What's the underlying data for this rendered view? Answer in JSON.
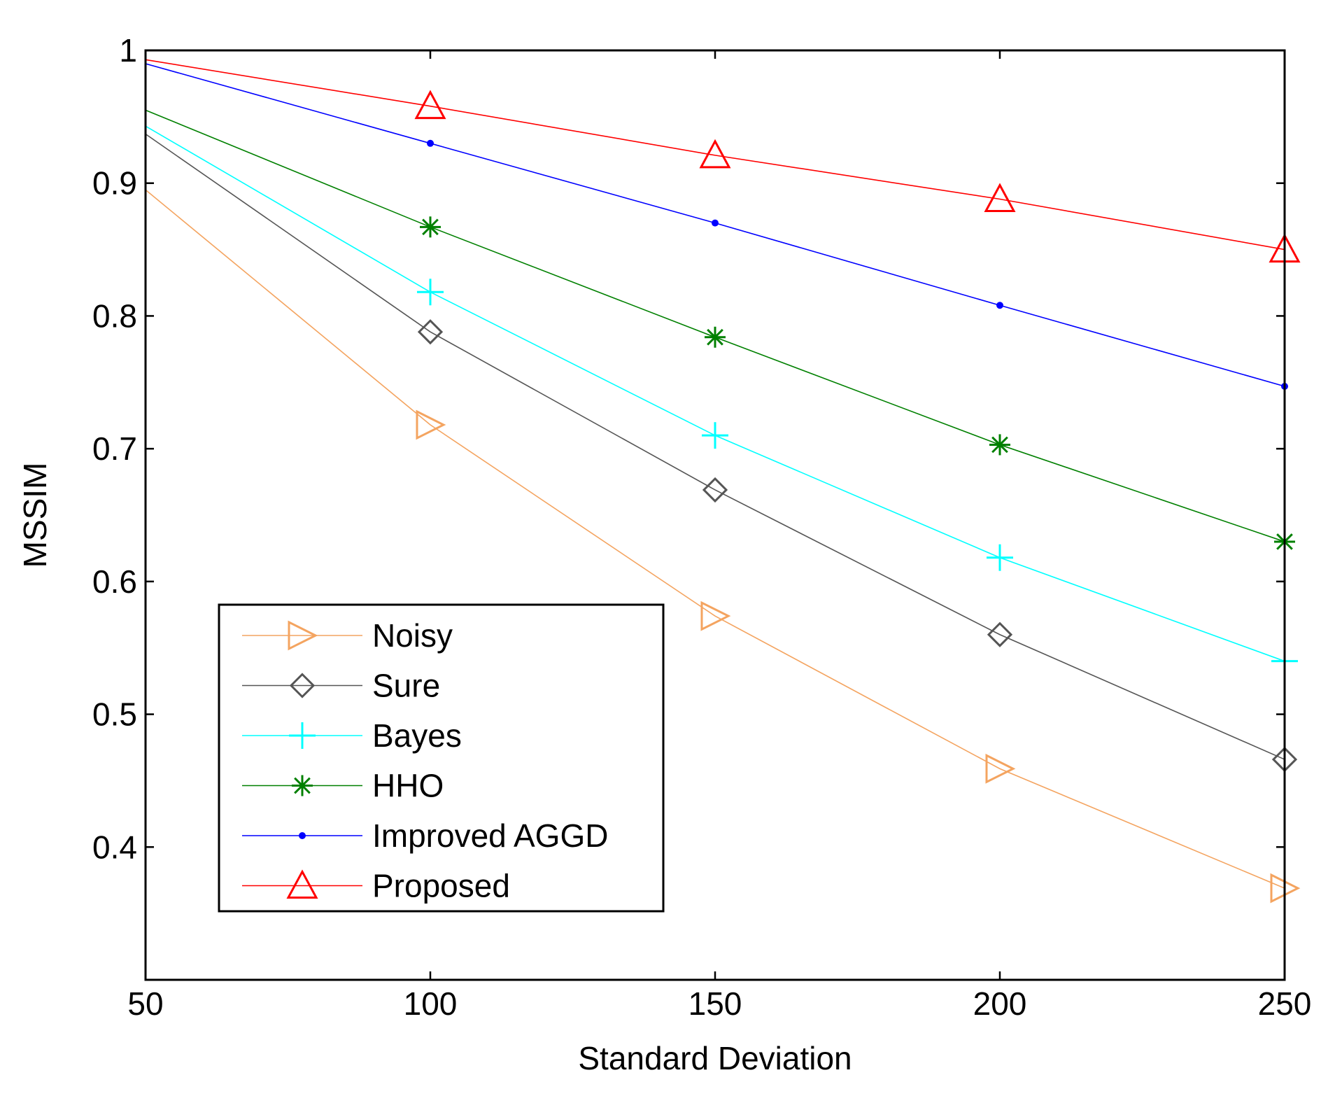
{
  "chart_data": {
    "type": "line",
    "title": "",
    "xlabel": "Standard Deviation",
    "ylabel": "MSSIM",
    "xlim": [
      50,
      250
    ],
    "ylim": [
      0.3,
      1.0
    ],
    "xticks": [
      50,
      100,
      150,
      200,
      250
    ],
    "yticks": [
      0.4,
      0.5,
      0.6,
      0.7,
      0.8,
      0.9,
      1
    ],
    "xtick_labels": [
      "50",
      "100",
      "150",
      "200",
      "250"
    ],
    "ytick_labels": [
      "0.4",
      "0.5",
      "0.6",
      "0.7",
      "0.8",
      "0.9",
      "1"
    ],
    "x": [
      50,
      100,
      150,
      200,
      250
    ],
    "legend_position": "lower-left",
    "grid": false,
    "series": [
      {
        "name": "Noisy",
        "color": "#f4a460",
        "marker": "triangle-right",
        "values": [
          0.895,
          0.718,
          0.574,
          0.459,
          0.369
        ]
      },
      {
        "name": "Sure",
        "color": "#555555",
        "marker": "diamond",
        "values": [
          0.937,
          0.788,
          0.669,
          0.56,
          0.466
        ]
      },
      {
        "name": "Bayes",
        "color": "#00ffff",
        "marker": "plus",
        "values": [
          0.943,
          0.818,
          0.71,
          0.618,
          0.54
        ]
      },
      {
        "name": "HHO",
        "color": "#008000",
        "marker": "asterisk",
        "values": [
          0.955,
          0.867,
          0.784,
          0.703,
          0.63
        ]
      },
      {
        "name": "Improved AGGD",
        "color": "#0000ff",
        "marker": "point",
        "values": [
          0.99,
          0.93,
          0.87,
          0.808,
          0.747
        ]
      },
      {
        "name": "Proposed",
        "color": "#ff0000",
        "marker": "triangle-up",
        "values": [
          0.993,
          0.958,
          0.921,
          0.888,
          0.85
        ]
      }
    ]
  }
}
